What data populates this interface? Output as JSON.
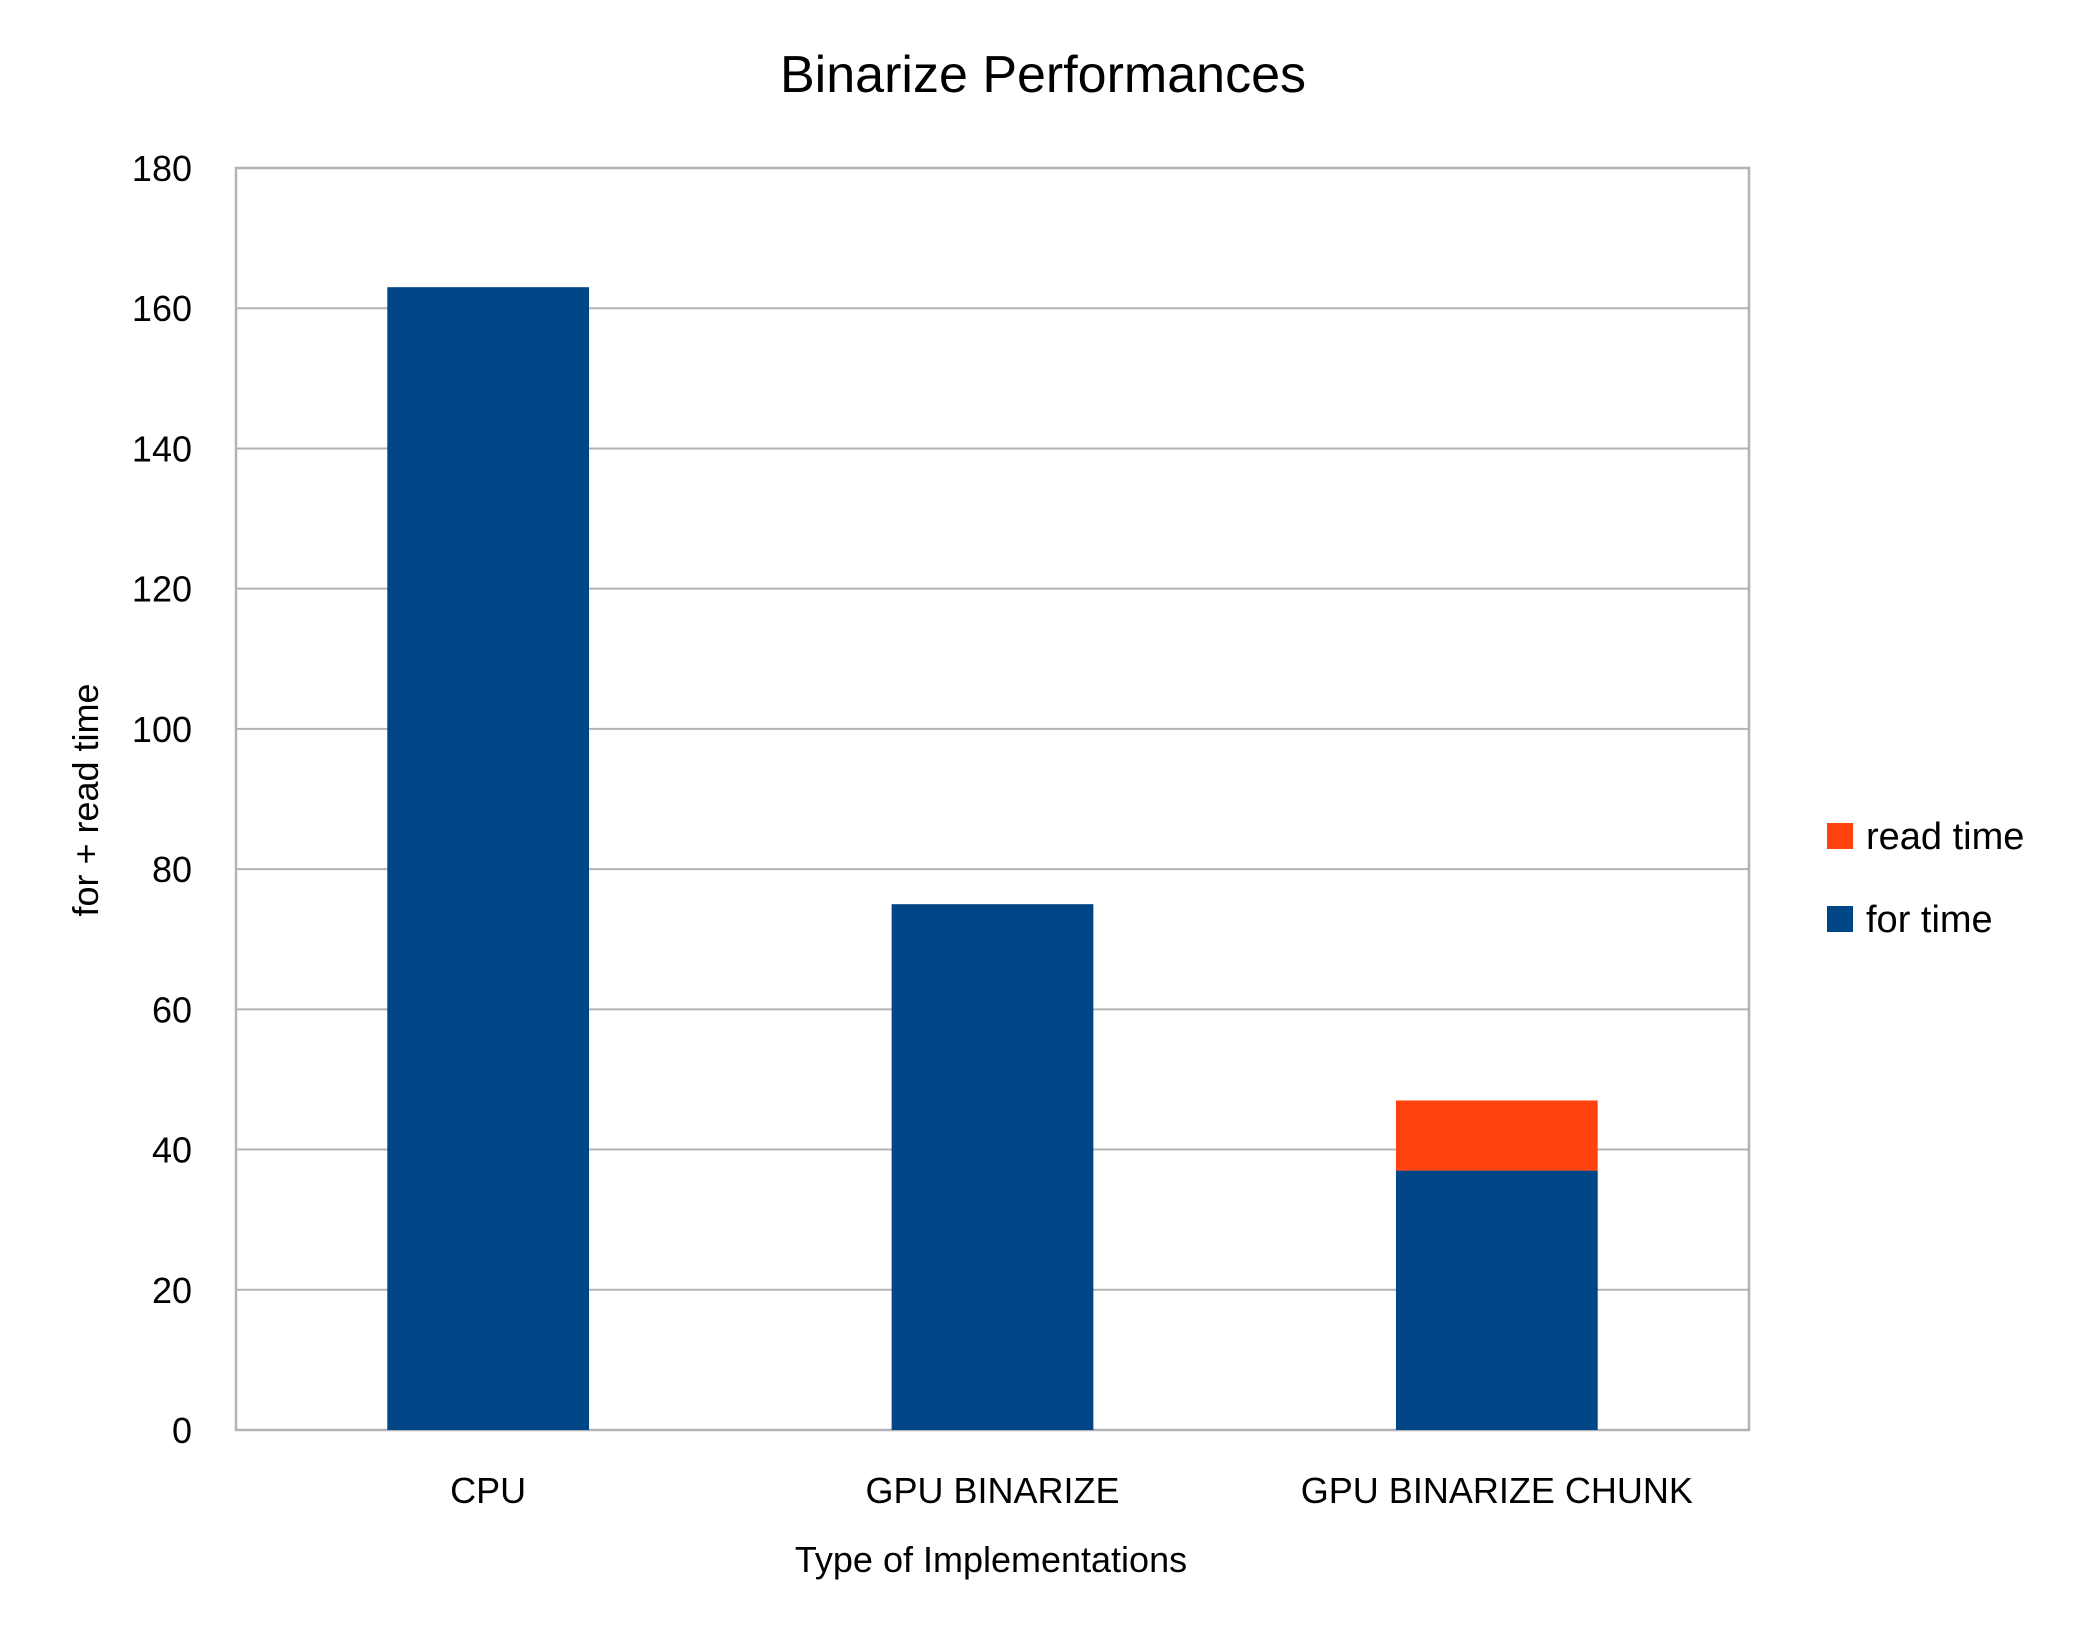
{
  "chart_data": {
    "type": "bar",
    "stacked": true,
    "title": "Binarize Performances",
    "xlabel": "Type of Implementations",
    "ylabel": "for + read time",
    "categories": [
      "CPU",
      "GPU BINARIZE",
      "GPU BINARIZE CHUNK"
    ],
    "series": [
      {
        "name": "for time",
        "values": [
          163,
          75,
          37
        ],
        "color": "#004586"
      },
      {
        "name": "read time",
        "values": [
          0,
          0,
          10
        ],
        "color": "#ff420e"
      }
    ],
    "ylim": [
      0,
      180
    ],
    "yticks": [
      0,
      20,
      40,
      60,
      80,
      100,
      120,
      140,
      160,
      180
    ],
    "grid": true,
    "legend_position": "right",
    "legend_order": [
      "read time",
      "for time"
    ]
  }
}
